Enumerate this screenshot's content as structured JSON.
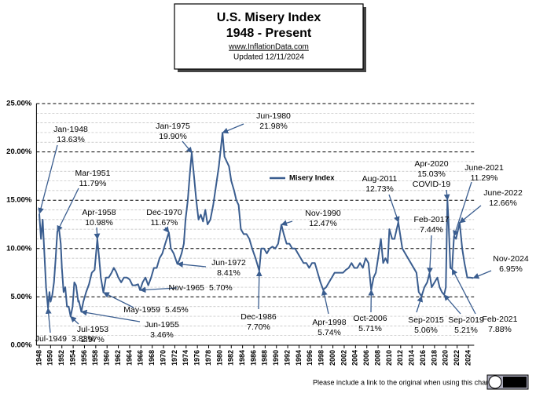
{
  "chart_data": {
    "type": "line",
    "title": "U.S. Misery Index",
    "subtitle": "1948 - Present",
    "source": "www.InflationData.com",
    "updated": "Updated  12/11/2024",
    "footer": "Please include a link to the original when using this chart",
    "xlim": [
      1947.5,
      2025
    ],
    "xticks": [
      1948,
      1950,
      1952,
      1954,
      1956,
      1958,
      1960,
      1962,
      1964,
      1966,
      1968,
      1970,
      1972,
      1974,
      1976,
      1978,
      1980,
      1982,
      1984,
      1986,
      1988,
      1990,
      1992,
      1994,
      1996,
      1998,
      2000,
      2002,
      2004,
      2006,
      2008,
      2010,
      2012,
      2014,
      2016,
      2018,
      2020,
      2022,
      2024
    ],
    "ylim": [
      0,
      25
    ],
    "yticks": [
      {
        "value": 0,
        "label": "0.00%"
      },
      {
        "value": 5,
        "label": "5.00%"
      },
      {
        "value": 10,
        "label": "10.00%"
      },
      {
        "value": 15,
        "label": "15.00%"
      },
      {
        "value": 20,
        "label": "20.00%"
      },
      {
        "value": 25,
        "label": "25.00%"
      }
    ],
    "yminor_ticks": [
      1,
      2,
      3,
      4,
      6,
      7,
      8,
      9,
      11,
      12,
      13,
      14,
      16,
      17,
      18,
      19,
      21,
      22,
      23,
      24
    ],
    "grid": true,
    "legend": "center",
    "x": [
      1948.0,
      1948.3,
      1948.6,
      1948.9,
      1949.2,
      1949.55,
      1949.8,
      1950.0,
      1950.3,
      1950.6,
      1950.9,
      1951.2,
      1951.5,
      1951.8,
      1952.0,
      1952.3,
      1952.6,
      1952.9,
      1953.2,
      1953.55,
      1953.9,
      1954.2,
      1954.5,
      1954.9,
      1955.0,
      1955.45,
      1955.8,
      1956.3,
      1956.8,
      1957.3,
      1957.8,
      1958.28,
      1958.6,
      1958.9,
      1959.35,
      1959.8,
      1960.3,
      1960.8,
      1961.2,
      1961.6,
      1962.0,
      1962.5,
      1963.0,
      1963.5,
      1964.0,
      1964.5,
      1965.0,
      1965.5,
      1965.85,
      1966.3,
      1966.8,
      1967.3,
      1967.8,
      1968.3,
      1968.8,
      1969.3,
      1969.8,
      1970.3,
      1970.95,
      1971.3,
      1971.8,
      1972.45,
      1972.8,
      1973.2,
      1973.6,
      1973.9,
      1974.3,
      1974.7,
      1975.0,
      1975.4,
      1975.8,
      1976.2,
      1976.6,
      1977.0,
      1977.4,
      1977.8,
      1978.3,
      1978.8,
      1979.3,
      1979.8,
      1980.45,
      1980.8,
      1981.2,
      1981.6,
      1982.0,
      1982.5,
      1982.9,
      1983.3,
      1983.7,
      1984.2,
      1984.7,
      1985.2,
      1985.7,
      1986.3,
      1986.95,
      1987.3,
      1987.8,
      1988.3,
      1988.8,
      1989.3,
      1989.8,
      1990.3,
      1990.88,
      1991.3,
      1991.8,
      1992.3,
      1992.8,
      1993.3,
      1993.8,
      1994.3,
      1994.8,
      1995.3,
      1995.8,
      1996.3,
      1996.8,
      1997.3,
      1997.8,
      1998.28,
      1998.8,
      1999.3,
      1999.8,
      2000.3,
      2000.8,
      2001.3,
      2001.8,
      2002.3,
      2002.8,
      2003.3,
      2003.8,
      2004.3,
      2004.8,
      2005.3,
      2005.8,
      2006.3,
      2006.78,
      2007.2,
      2007.6,
      2008.0,
      2008.5,
      2008.9,
      2009.3,
      2009.7,
      2010.0,
      2010.5,
      2010.9,
      2011.58,
      2011.9,
      2012.3,
      2012.8,
      2013.3,
      2013.8,
      2014.3,
      2014.8,
      2015.2,
      2015.7,
      2016.2,
      2016.7,
      2017.1,
      2017.5,
      2018.0,
      2018.5,
      2018.9,
      2019.3,
      2019.7,
      2020.0,
      2020.28,
      2020.5,
      2020.8,
      2021.1,
      2021.45,
      2021.8,
      2022.45,
      2022.9,
      2023.3,
      2023.8,
      2024.3,
      2024.85
    ],
    "series": [
      {
        "name": "Misery Index",
        "color": "#3a5d8f",
        "values": [
          13.6,
          11.0,
          13.0,
          9.5,
          6.0,
          3.83,
          5.5,
          4.5,
          5.2,
          6.5,
          9.0,
          11.79,
          12.0,
          10.5,
          8.0,
          5.5,
          6.0,
          4.0,
          4.0,
          2.97,
          4.0,
          6.5,
          6.2,
          4.5,
          4.6,
          3.46,
          4.5,
          5.5,
          6.3,
          7.5,
          7.8,
          10.98,
          9.0,
          7.0,
          5.45,
          7.0,
          7.0,
          7.5,
          8.0,
          7.6,
          7.0,
          6.5,
          7.0,
          7.0,
          6.8,
          6.2,
          6.2,
          6.3,
          5.7,
          6.5,
          7.0,
          6.2,
          7.0,
          8.0,
          8.0,
          9.0,
          9.5,
          10.5,
          11.67,
          10.0,
          9.5,
          8.41,
          8.8,
          9.5,
          10.5,
          13.0,
          15.0,
          18.0,
          19.9,
          17.5,
          15.0,
          13.0,
          13.5,
          12.8,
          14.0,
          12.5,
          13.0,
          14.5,
          16.5,
          18.5,
          21.98,
          19.5,
          19.0,
          18.5,
          17.0,
          16.0,
          15.0,
          14.5,
          12.0,
          11.5,
          11.5,
          11.0,
          10.0,
          9.0,
          7.7,
          10.0,
          10.0,
          9.5,
          10.0,
          10.2,
          10.0,
          10.5,
          12.47,
          11.5,
          10.5,
          10.5,
          10.0,
          10.0,
          9.5,
          9.0,
          8.5,
          8.5,
          8.0,
          8.5,
          8.5,
          7.5,
          6.5,
          5.74,
          6.0,
          6.5,
          7.0,
          7.5,
          7.5,
          7.5,
          7.5,
          7.8,
          8.0,
          8.5,
          8.0,
          8.0,
          8.5,
          8.0,
          9.0,
          8.5,
          5.71,
          7.0,
          7.5,
          9.0,
          11.0,
          8.5,
          9.0,
          8.5,
          12.0,
          11.0,
          11.0,
          12.73,
          11.5,
          10.0,
          9.5,
          9.0,
          8.5,
          8.0,
          7.5,
          5.5,
          5.06,
          6.0,
          6.5,
          7.44,
          6.0,
          6.5,
          7.0,
          6.0,
          5.5,
          5.21,
          6.0,
          15.03,
          12.5,
          8.0,
          7.88,
          11.29,
          11.0,
          12.66,
          10.0,
          8.5,
          7.0,
          7.0,
          6.95
        ]
      }
    ],
    "annotations": [
      {
        "date": "Jan-1948",
        "value": 13.63,
        "value_label": "13.63%"
      },
      {
        "date": "Jul-1949",
        "value": 3.83,
        "value_label": "3.83%"
      },
      {
        "date": "Mar-1951",
        "value": 11.79,
        "value_label": "11.79%"
      },
      {
        "date": "Jul-1953",
        "value": 2.97,
        "value_label": "2.97%"
      },
      {
        "date": "Jun-1955",
        "value": 3.46,
        "value_label": "3.46%"
      },
      {
        "date": "Apr-1958",
        "value": 10.98,
        "value_label": "10.98%"
      },
      {
        "date": "May-1959",
        "value": 5.45,
        "value_label": "5.45%"
      },
      {
        "date": "Dec-1970",
        "value": 11.67,
        "value_label": "11.67%"
      },
      {
        "date": "Nov-1965",
        "value": 5.7,
        "value_label": "5.70%"
      },
      {
        "date": "Jan-1975",
        "value": 19.9,
        "value_label": "19.90%"
      },
      {
        "date": "Jun-1972",
        "value": 8.41,
        "value_label": "8.41%"
      },
      {
        "date": "Jun-1980",
        "value": 21.98,
        "value_label": "21.98%"
      },
      {
        "date": "Dec-1986",
        "value": 7.7,
        "value_label": "7.70%"
      },
      {
        "date": "Nov-1990",
        "value": 12.47,
        "value_label": "12.47%"
      },
      {
        "date": "Apr-1998",
        "value": 5.74,
        "value_label": "5.74%"
      },
      {
        "date": "Oct-2006",
        "value": 5.71,
        "value_label": "5.71%"
      },
      {
        "date": "Aug-2011",
        "value": 12.73,
        "value_label": "12.73%"
      },
      {
        "date": "Sep-2015",
        "value": 5.06,
        "value_label": "5.06%"
      },
      {
        "date": "Apr-2020",
        "value": 15.03,
        "value_label": "15.03%",
        "note": "COVID-19"
      },
      {
        "date": "Feb-2017",
        "value": 7.44,
        "value_label": "7.44%"
      },
      {
        "date": "Sep-2019",
        "value": 5.21,
        "value_label": "5.21%"
      },
      {
        "date": "June-2021",
        "value": 11.29,
        "value_label": "11.29%"
      },
      {
        "date": "June-2022",
        "value": 12.66,
        "value_label": "12.66%"
      },
      {
        "date": "Nov-2024",
        "value": 6.95,
        "value_label": "6.95%"
      },
      {
        "date": "Feb-2021",
        "value": 7.88,
        "value_label": "7.88%"
      }
    ]
  }
}
